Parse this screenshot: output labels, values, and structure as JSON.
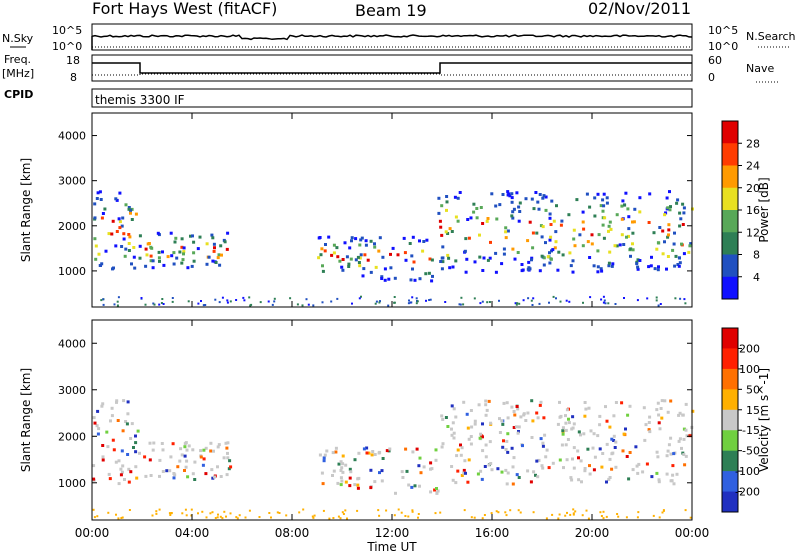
{
  "header": {
    "radar": "Fort Hays West (fitACF)",
    "beam": "Beam 19",
    "date": "02/Nov/2011"
  },
  "panels": {
    "nsky_label": "N.Sky",
    "nsky_ticks": [
      "10^5",
      "10^0"
    ],
    "nsearch_label": "N.Search",
    "nsearch_ticks": [
      "10^5",
      "10^0"
    ],
    "freq_label_1": "Freq.",
    "freq_label_2": "[MHz]",
    "freq_ticks": [
      "18",
      "8"
    ],
    "nave_label": "Nave",
    "nave_ticks": [
      "60",
      "0"
    ],
    "cpid_label": "CPID",
    "cpid_text": "themis 3300 IF"
  },
  "chart_data": [
    {
      "type": "heatmap",
      "name": "power",
      "ylabel": "Slant Range [km]",
      "yticks": [
        1000,
        2000,
        3000,
        4000
      ],
      "ylim": [
        200,
        4500
      ],
      "xlim": [
        0,
        24
      ],
      "colorbar_label": "Power [dB]",
      "colorbar_ticks": [
        "4",
        "8",
        "12",
        "16",
        "20",
        "24",
        "28"
      ],
      "colors": [
        "#1010ff",
        "#2050c0",
        "#2e7f55",
        "#58a858",
        "#e8e020",
        "#ff9a00",
        "#ff3c00",
        "#e00000"
      ],
      "scatter_regions": [
        {
          "t": [
            0.0,
            1.8
          ],
          "r": [
            1000,
            2800
          ],
          "density": 0.75
        },
        {
          "t": [
            1.8,
            5.5
          ],
          "r": [
            1100,
            1900
          ],
          "density": 0.45
        },
        {
          "t": [
            9.0,
            11.5
          ],
          "r": [
            900,
            1800
          ],
          "density": 0.5
        },
        {
          "t": [
            11.5,
            13.8
          ],
          "r": [
            800,
            1800
          ],
          "density": 0.35
        },
        {
          "t": [
            13.8,
            24.0
          ],
          "r": [
            1000,
            2800
          ],
          "density": 0.7
        }
      ]
    },
    {
      "type": "heatmap",
      "name": "velocity",
      "ylabel": "Slant Range [km]",
      "yticks": [
        1000,
        2000,
        3000,
        4000
      ],
      "ylim": [
        200,
        4500
      ],
      "xlim": [
        0,
        24
      ],
      "colorbar_label": "Velocity [m s^-1]",
      "colorbar_ticks": [
        "200",
        "100",
        "50",
        "15",
        "-15",
        "-50",
        "-100",
        "-200"
      ],
      "colors": [
        "#2030c0",
        "#3060e0",
        "#2e7f55",
        "#70d040",
        "#c8c8c8",
        "#ffb000",
        "#ff7000",
        "#ff2000",
        "#e00000"
      ],
      "scatter_regions": [
        {
          "t": [
            0.0,
            1.8
          ],
          "r": [
            1000,
            2800
          ],
          "density": 0.75
        },
        {
          "t": [
            1.8,
            5.5
          ],
          "r": [
            1100,
            1900
          ],
          "density": 0.45
        },
        {
          "t": [
            9.0,
            11.5
          ],
          "r": [
            900,
            1800
          ],
          "density": 0.5
        },
        {
          "t": [
            11.5,
            13.8
          ],
          "r": [
            800,
            1800
          ],
          "density": 0.35
        },
        {
          "t": [
            13.8,
            24.0
          ],
          "r": [
            1000,
            2800
          ],
          "density": 0.7
        }
      ]
    }
  ],
  "xaxis": {
    "ticks": [
      "00:00",
      "04:00",
      "08:00",
      "12:00",
      "16:00",
      "20:00",
      "00:00"
    ],
    "label": "Time UT"
  }
}
